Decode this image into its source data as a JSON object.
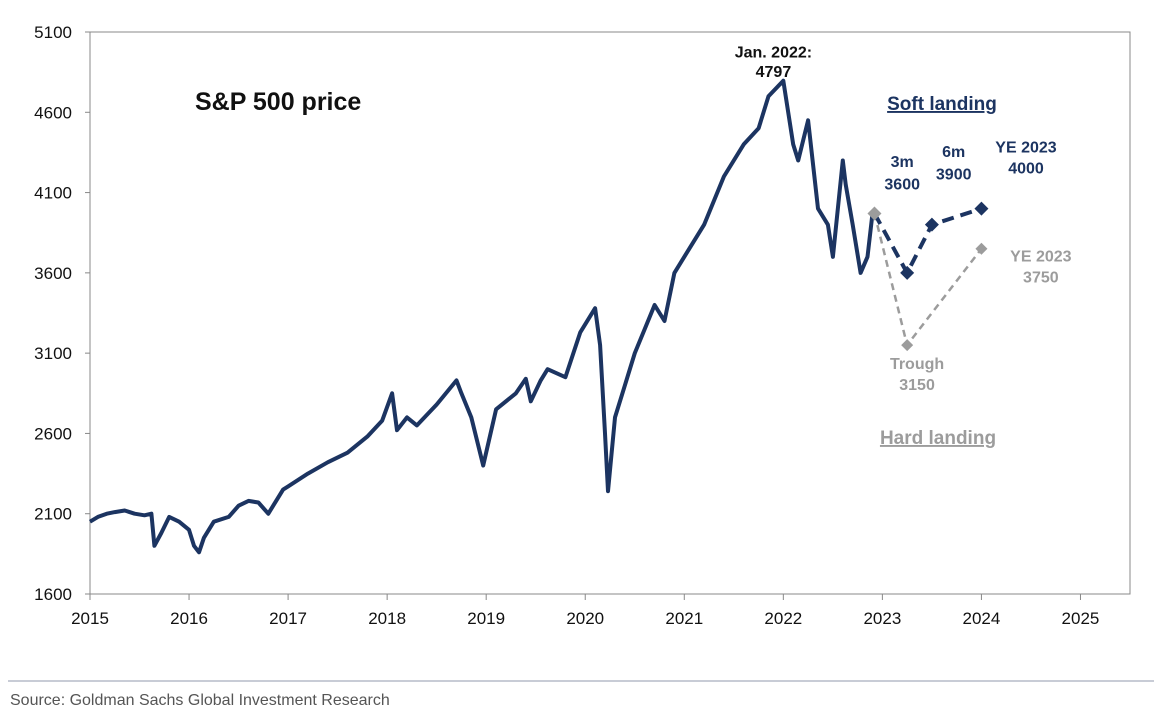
{
  "source": "Source: Goldman Sachs Global Investment Research",
  "colors": {
    "series": "#1c3461",
    "gray": "#9c9c9c",
    "axis": "#888888"
  },
  "chart_data": {
    "type": "line",
    "title": "S&P 500 price",
    "xlabel": "",
    "ylabel": "",
    "xlim": [
      2015,
      2025.5
    ],
    "ylim": [
      1600,
      5100
    ],
    "x_ticks": [
      "2015",
      "2016",
      "2017",
      "2018",
      "2019",
      "2020",
      "2021",
      "2022",
      "2023",
      "2024",
      "2025"
    ],
    "y_ticks": [
      "1600",
      "2100",
      "2600",
      "3100",
      "3600",
      "4100",
      "4600",
      "5100"
    ],
    "grid": false,
    "series": [
      {
        "name": "",
        "style": "solid",
        "x": [
          2015.0,
          2015.08,
          2015.17,
          2015.25,
          2015.35,
          2015.45,
          2015.55,
          2015.62,
          2015.65,
          2015.72,
          2015.8,
          2015.9,
          2016.0,
          2016.05,
          2016.1,
          2016.15,
          2016.25,
          2016.4,
          2016.5,
          2016.6,
          2016.7,
          2016.8,
          2016.85,
          2016.95,
          2017.0,
          2017.2,
          2017.4,
          2017.6,
          2017.8,
          2017.95,
          2018.05,
          2018.1,
          2018.2,
          2018.3,
          2018.5,
          2018.7,
          2018.75,
          2018.85,
          2018.97,
          2019.1,
          2019.3,
          2019.4,
          2019.45,
          2019.55,
          2019.62,
          2019.8,
          2019.95,
          2020.1,
          2020.15,
          2020.2,
          2020.23,
          2020.3,
          2020.4,
          2020.5,
          2020.6,
          2020.7,
          2020.8,
          2020.9,
          2021.0,
          2021.2,
          2021.4,
          2021.6,
          2021.75,
          2021.85,
          2022.0,
          2022.1,
          2022.15,
          2022.25,
          2022.35,
          2022.45,
          2022.5,
          2022.6,
          2022.63,
          2022.7,
          2022.78,
          2022.85,
          2022.9
        ],
        "values": [
          2050,
          2080,
          2100,
          2110,
          2120,
          2100,
          2090,
          2100,
          1900,
          1980,
          2080,
          2050,
          2000,
          1900,
          1860,
          1950,
          2050,
          2080,
          2150,
          2180,
          2170,
          2100,
          2150,
          2250,
          2270,
          2350,
          2420,
          2480,
          2580,
          2680,
          2850,
          2620,
          2700,
          2650,
          2780,
          2930,
          2850,
          2700,
          2400,
          2750,
          2850,
          2940,
          2800,
          2930,
          3000,
          2950,
          3230,
          3380,
          3150,
          2600,
          2240,
          2700,
          2900,
          3100,
          3250,
          3400,
          3300,
          3600,
          3700,
          3900,
          4200,
          4400,
          4500,
          4700,
          4797,
          4400,
          4300,
          4550,
          4000,
          3900,
          3700,
          4300,
          4150,
          3900,
          3600,
          3700,
          3970
        ]
      },
      {
        "name": "Soft landing",
        "style": "dashed",
        "x": [
          2022.92,
          2023.25,
          2023.5,
          2024.0
        ],
        "values": [
          3970,
          3600,
          3900,
          4000
        ]
      },
      {
        "name": "Hard landing",
        "style": "dashed",
        "x": [
          2022.92,
          2023.25,
          2024.0
        ],
        "values": [
          3970,
          3150,
          3750
        ]
      }
    ],
    "annotations": [
      {
        "text": "Jan. 2022:",
        "x": 2021.9,
        "y": 4940
      },
      {
        "text": "4797",
        "x": 2021.9,
        "y": 4820
      },
      {
        "text": "3m",
        "x": 2023.2,
        "y": 4260
      },
      {
        "text": "3600",
        "x": 2023.2,
        "y": 4120
      },
      {
        "text": "6m",
        "x": 2023.72,
        "y": 4320
      },
      {
        "text": "3900",
        "x": 2023.72,
        "y": 4180
      },
      {
        "text": "YE 2023",
        "x": 2024.45,
        "y": 4350
      },
      {
        "text": "4000",
        "x": 2024.45,
        "y": 4220
      },
      {
        "text": "YE 2023",
        "x": 2024.6,
        "y": 3670
      },
      {
        "text": "3750",
        "x": 2024.6,
        "y": 3540
      },
      {
        "text": "Trough",
        "x": 2023.35,
        "y": 3000
      },
      {
        "text": "3150",
        "x": 2023.35,
        "y": 2870
      }
    ]
  }
}
